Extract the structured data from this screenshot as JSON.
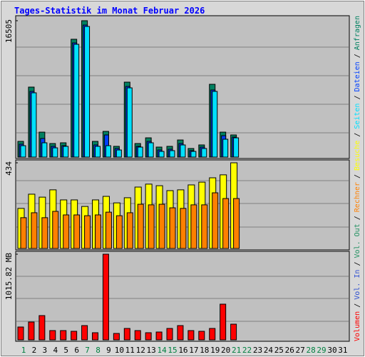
{
  "chart_data": {
    "type": "bar",
    "title": "Tages-Statistik im Monat Februar 2026",
    "categories": [
      1,
      2,
      3,
      4,
      5,
      6,
      7,
      8,
      9,
      10,
      11,
      12,
      13,
      14,
      15,
      16,
      17,
      18,
      19,
      20,
      21,
      22,
      23,
      24,
      25,
      26,
      27,
      28,
      29,
      30,
      31
    ],
    "category_colors": [
      "#008040",
      "#000000",
      "#000000",
      "#000000",
      "#000000",
      "#000000",
      "#008040",
      "#008040",
      "#000000",
      "#000000",
      "#000000",
      "#000000",
      "#000000",
      "#008040",
      "#008040",
      "#000000",
      "#000000",
      "#000000",
      "#000000",
      "#000000",
      "#008040",
      "#008040",
      "#000000",
      "#000000",
      "#000000",
      "#000000",
      "#000000",
      "#008040",
      "#008040",
      "#000000",
      "#000000"
    ],
    "legend_separator": "/",
    "panels": [
      {
        "ylim": [
          0,
          16505
        ],
        "yticks": [
          16505
        ],
        "series": [
          {
            "name": "Anfragen",
            "color": "#008060",
            "values": [
              1900,
              8470,
              3020,
              1640,
              1730,
              14260,
              16505,
              1900,
              3110,
              1300,
              9070,
              1640,
              2330,
              1210,
              1300,
              2070,
              1040,
              1470,
              8810,
              3020,
              2680,
              null,
              null,
              null,
              null,
              null,
              null,
              null,
              null,
              null,
              null
            ]
          },
          {
            "name": "Dateien",
            "color": "#0040ff",
            "values": [
              1560,
              7950,
              2250,
              1300,
              1380,
              13820,
              15980,
              1470,
              2680,
              1040,
              8550,
              1300,
              1900,
              860,
              950,
              1640,
              780,
              1210,
              8120,
              2590,
              2420,
              null,
              null,
              null,
              null,
              null,
              null,
              null,
              null,
              null,
              null
            ]
          },
          {
            "name": "Seiten",
            "color": "#00e0ff",
            "values": [
              1380,
              7780,
              1730,
              1120,
              1300,
              13650,
              15810,
              1300,
              1380,
              860,
              8380,
              1210,
              1730,
              690,
              780,
              1470,
              690,
              1040,
              7950,
              2160,
              2330,
              null,
              null,
              null,
              null,
              null,
              null,
              null,
              null,
              null,
              null
            ]
          }
        ]
      },
      {
        "ylim": [
          0,
          434
        ],
        "yticks": [
          434
        ],
        "series": [
          {
            "name": "Besuche",
            "color": "#ffff00",
            "values": [
              203,
              275,
              260,
              297,
              246,
              246,
              213,
              246,
              264,
              231,
              257,
              311,
              326,
              318,
              293,
              297,
              322,
              336,
              358,
              373,
              434,
              null,
              null,
              null,
              null,
              null,
              null,
              null,
              null,
              null,
              null
            ]
          },
          {
            "name": "Rechner",
            "color": "#ff8000",
            "values": [
              156,
              181,
              156,
              188,
              170,
              170,
              166,
              170,
              184,
              166,
              181,
              224,
              221,
              224,
              206,
              203,
              221,
              221,
              282,
              253,
              253,
              null,
              null,
              null,
              null,
              null,
              null,
              null,
              null,
              null,
              null
            ]
          }
        ]
      },
      {
        "ylim": [
          0,
          1015.82
        ],
        "yticks": [
          {
            "value": 1015.82,
            "label": "1015.82 MB"
          }
        ],
        "series": [
          {
            "name": "Vol. Out",
            "color": "#209060"
          },
          {
            "name": "Vol. In",
            "color": "#3050d0"
          },
          {
            "name": "Volumen",
            "color": "#ff0000",
            "values": [
              152.4,
              211.6,
              287.8,
              110.0,
              110.0,
              101.6,
              169.3,
              84.7,
              1015.82,
              76.2,
              135.4,
              110.0,
              84.7,
              93.1,
              135.4,
              169.3,
              110.0,
              101.6,
              135.4,
              423.3,
              186.2,
              null,
              null,
              null,
              null,
              null,
              null,
              null,
              null,
              null,
              null
            ]
          }
        ]
      }
    ]
  }
}
